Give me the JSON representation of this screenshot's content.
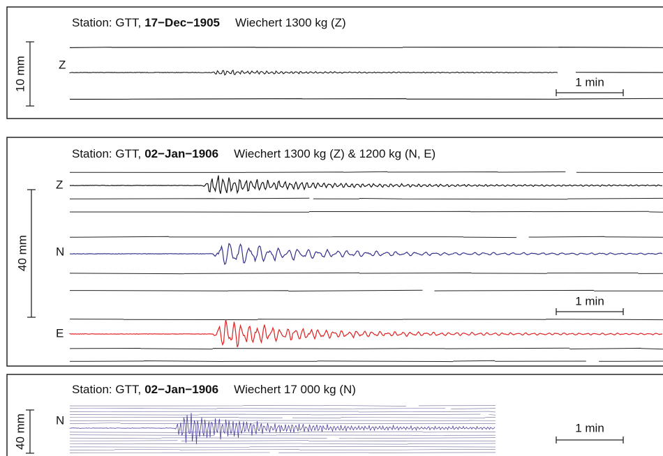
{
  "panels": [
    {
      "station": "Station: GTT,",
      "date": "17−Dec−1905",
      "instrument": "Wiechert 1300 kg (Z)",
      "amplitude_scale": "10 mm",
      "time_scale": "1 min",
      "channels": [
        "Z"
      ]
    },
    {
      "station": "Station: GTT,",
      "date": "02−Jan−1906",
      "instrument": "Wiechert 1300 kg (Z) & 1200 kg (N, E)",
      "amplitude_scale": "40 mm",
      "time_scale": "1 min",
      "channels": [
        "Z",
        "N",
        "E"
      ]
    },
    {
      "station": "Station: GTT,",
      "date": "02−Jan−1906",
      "instrument": "Wiechert 17 000 kg (N)",
      "amplitude_scale": "40 mm",
      "time_scale": "1 min",
      "channels": [
        "N"
      ]
    }
  ]
}
